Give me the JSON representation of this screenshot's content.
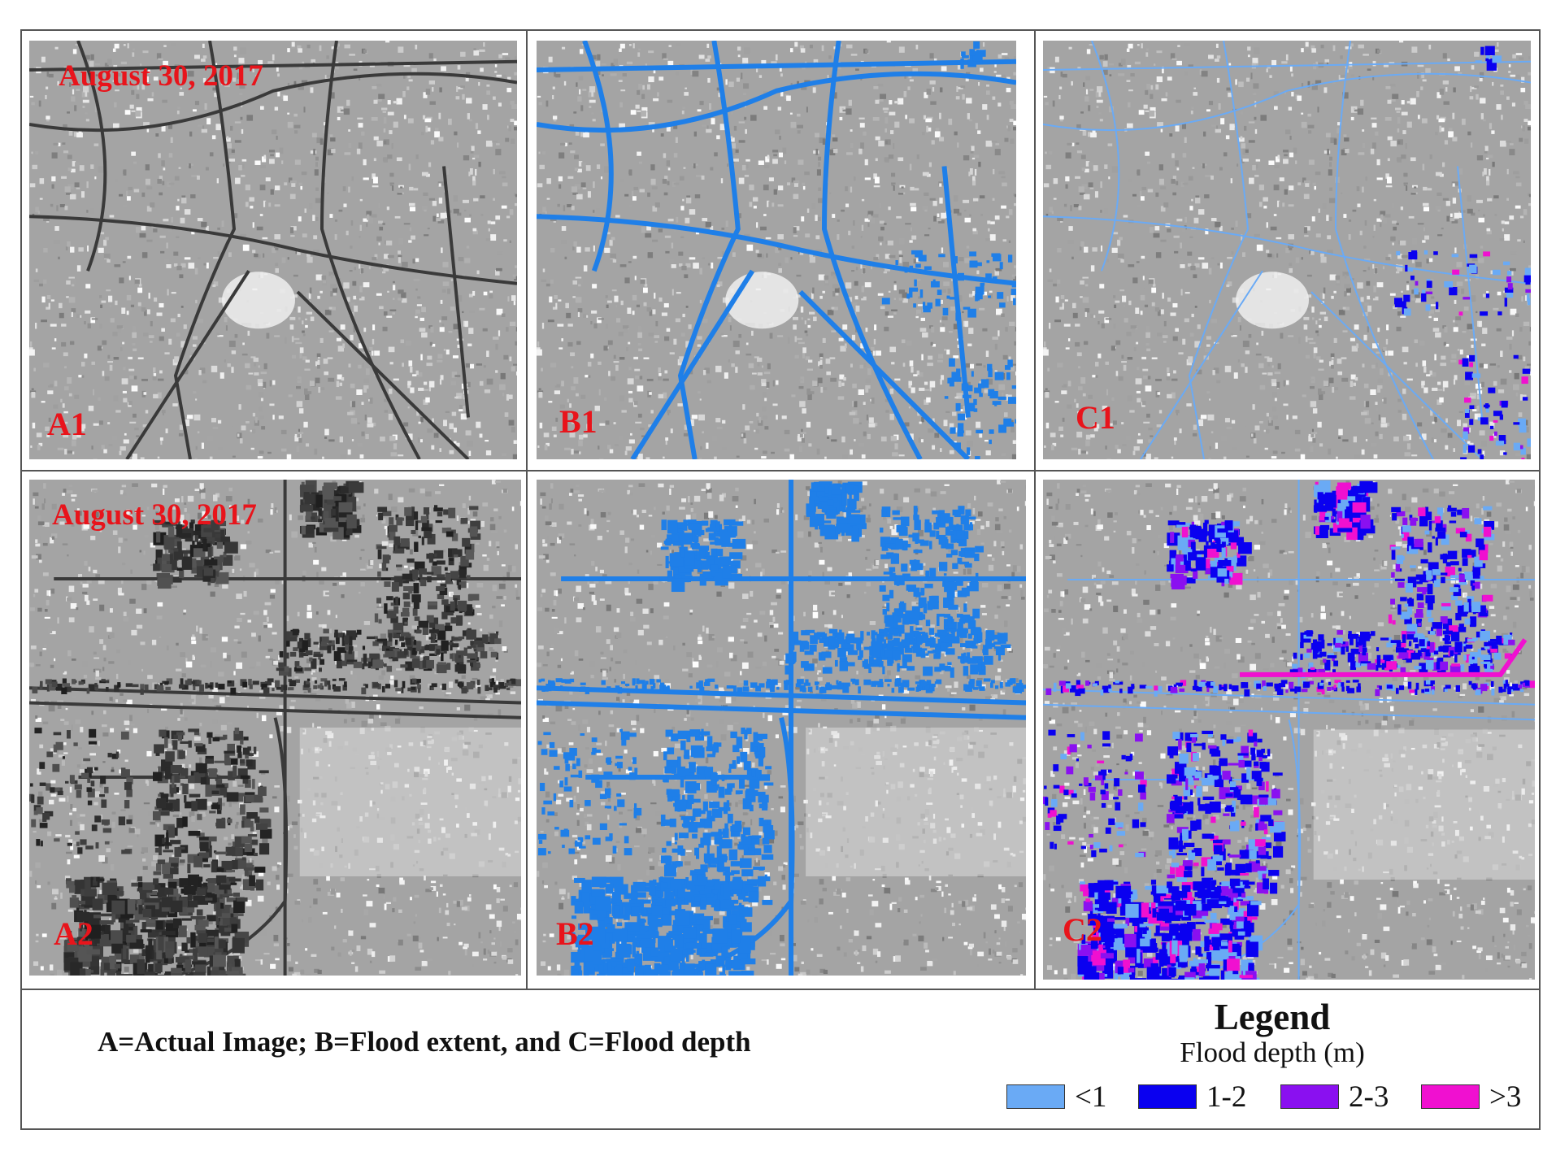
{
  "panels": [
    {
      "id": "A1",
      "label": "A1",
      "date": "August 30, 2017",
      "kind": "actual",
      "scene": "top"
    },
    {
      "id": "B1",
      "label": "B1",
      "date": "",
      "kind": "extent",
      "scene": "top"
    },
    {
      "id": "C1",
      "label": "C1",
      "date": "",
      "kind": "depth",
      "scene": "top"
    },
    {
      "id": "A2",
      "label": "A2",
      "date": "August 30, 2017",
      "kind": "actual",
      "scene": "bottom"
    },
    {
      "id": "B2",
      "label": "B2",
      "date": "",
      "kind": "extent",
      "scene": "bottom"
    },
    {
      "id": "C2",
      "label": "C2",
      "date": "",
      "kind": "depth",
      "scene": "bottom"
    }
  ],
  "caption": "A=Actual Image; B=Flood extent, and C=Flood depth",
  "legend": {
    "title": "Legend",
    "subtitle": "Flood depth (m)",
    "items": [
      {
        "label": "<1",
        "color": "#6aaaf5"
      },
      {
        "label": "1-2",
        "color": "#0a00f0"
      },
      {
        "label": "2-3",
        "color": "#8a10f0"
      },
      {
        "label": ">3",
        "color": "#f010d0"
      }
    ]
  },
  "colors": {
    "label_red": "#e8141b",
    "flood_extent_blue": "#1f7fe8"
  }
}
